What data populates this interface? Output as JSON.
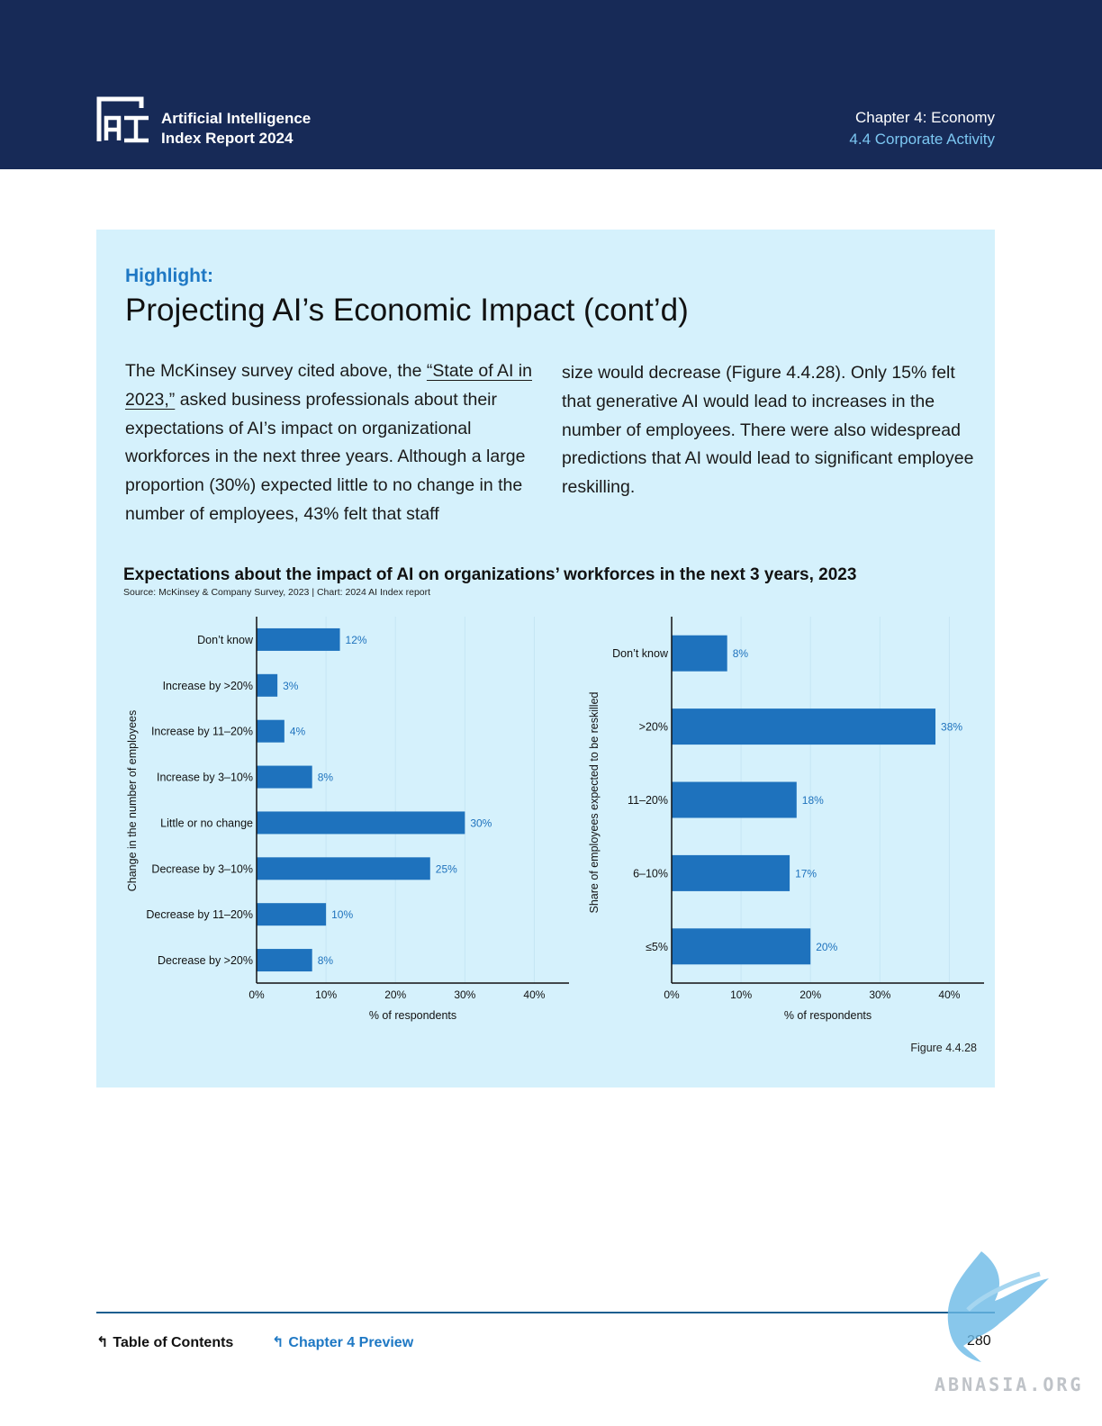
{
  "header": {
    "logo_line1": "Artificial Intelligence",
    "logo_line2": "Index Report 2024",
    "chapter": "Chapter 4: Economy",
    "section": "4.4 Corporate Activity"
  },
  "highlight": {
    "kicker": "Highlight:",
    "title": "Projecting AI’s Economic Impact (cont’d)",
    "col1_before": "The McKinsey survey cited above, the ",
    "col1_link": "“State of AI in 2023,”",
    "col1_after": " asked business professionals about their expectations of AI’s impact on organizational workforces in the next three years. Although a large proportion (30%) expected little to no change in the number of employees, 43% felt that staff",
    "col2": "size would decrease (Figure 4.4.28). Only 15% felt that generative AI would lead to increases in the number of employees. There were also widespread predictions that AI would lead to significant employee reskilling."
  },
  "chart_title": "Expectations about the impact of AI on organizations’ workforces in the next 3 years, 2023",
  "chart_source": "Source: McKinsey & Company Survey, 2023 | Chart: 2024 AI Index report",
  "figure_label": "Figure 4.4.28",
  "chart_data": [
    {
      "type": "bar",
      "orientation": "horizontal",
      "categories": [
        "Don’t know",
        "Increase by >20%",
        "Increase by 11–20%",
        "Increase by 3–10%",
        "Little or no change",
        "Decrease by 3–10%",
        "Decrease by 11–20%",
        "Decrease by >20%"
      ],
      "values": [
        12,
        3,
        4,
        8,
        30,
        25,
        10,
        8
      ],
      "value_labels": [
        "12%",
        "3%",
        "4%",
        "8%",
        "30%",
        "25%",
        "10%",
        "8%"
      ],
      "xlabel": "% of respondents",
      "ylabel": "Change in the number of employees",
      "xlim": [
        0,
        45
      ],
      "xticks": [
        0,
        10,
        20,
        30,
        40
      ],
      "xtick_labels": [
        "0%",
        "10%",
        "20%",
        "30%",
        "40%"
      ],
      "grid": true,
      "color": "#1e72bd"
    },
    {
      "type": "bar",
      "orientation": "horizontal",
      "categories": [
        "Don’t know",
        ">20%",
        "11–20%",
        "6–10%",
        "≤5%"
      ],
      "values": [
        8,
        38,
        18,
        17,
        20
      ],
      "value_labels": [
        "8%",
        "38%",
        "18%",
        "17%",
        "20%"
      ],
      "xlabel": "% of respondents",
      "ylabel": "Share of employees expected to be reskilled",
      "xlim": [
        0,
        45
      ],
      "xticks": [
        0,
        10,
        20,
        30,
        40
      ],
      "xtick_labels": [
        "0%",
        "10%",
        "20%",
        "30%",
        "40%"
      ],
      "grid": true,
      "color": "#1e72bd"
    }
  ],
  "footer": {
    "toc": "Table of Contents",
    "chapter_preview": "Chapter 4 Preview",
    "page": "280"
  },
  "watermark": "ABNASIA.ORG"
}
